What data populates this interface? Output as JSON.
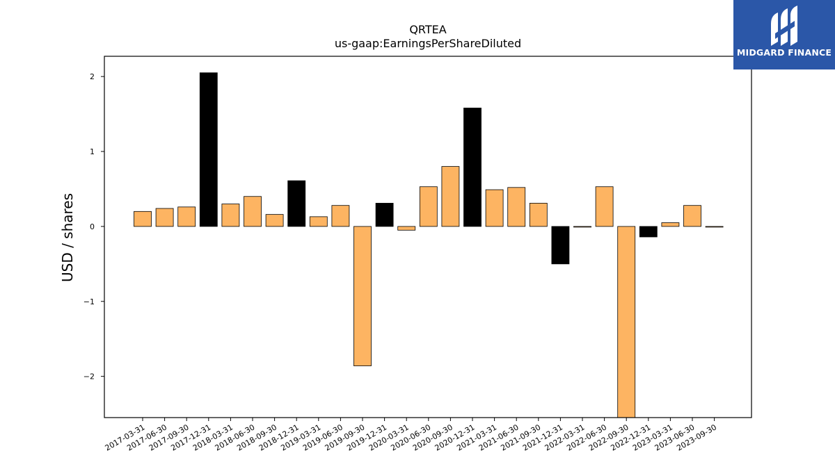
{
  "chart_data": {
    "type": "bar",
    "title": "QRTEA",
    "subtitle": "us-gaap:EarningsPerShareDiluted",
    "ylabel": "USD / shares",
    "xlabel": "",
    "ylim": [
      -2.55,
      2.27
    ],
    "yticks": [
      {
        "value": 2,
        "label": "2"
      },
      {
        "value": 1,
        "label": "1"
      },
      {
        "value": 0,
        "label": "0"
      },
      {
        "value": -1,
        "label": "−1"
      },
      {
        "value": -2,
        "label": "−2"
      }
    ],
    "categories": [
      "2017-03-31",
      "2017-06-30",
      "2017-09-30",
      "2017-12-31",
      "2018-03-31",
      "2018-06-30",
      "2018-09-30",
      "2018-12-31",
      "2019-03-31",
      "2019-06-30",
      "2019-09-30",
      "2019-12-31",
      "2020-03-31",
      "2020-06-30",
      "2020-09-30",
      "2020-12-31",
      "2021-03-31",
      "2021-06-30",
      "2021-09-30",
      "2021-12-31",
      "2022-03-31",
      "2022-06-30",
      "2022-09-30",
      "2022-12-31",
      "2023-03-31",
      "2023-06-30",
      "2023-09-30"
    ],
    "values": [
      0.2,
      0.24,
      0.26,
      2.05,
      0.3,
      0.4,
      0.16,
      0.61,
      0.13,
      0.28,
      -1.86,
      0.31,
      -0.05,
      0.53,
      0.8,
      1.58,
      0.49,
      0.52,
      0.31,
      -0.5,
      0.0,
      0.53,
      -2.55,
      -0.14,
      0.05,
      0.28,
      0.0
    ],
    "colors": [
      "#fdb462",
      "#fdb462",
      "#fdb462",
      "#000000",
      "#fdb462",
      "#fdb462",
      "#fdb462",
      "#000000",
      "#fdb462",
      "#fdb462",
      "#fdb462",
      "#000000",
      "#fdb462",
      "#fdb462",
      "#fdb462",
      "#000000",
      "#fdb462",
      "#fdb462",
      "#fdb462",
      "#000000",
      "#fdb462",
      "#fdb462",
      "#fdb462",
      "#000000",
      "#fdb462",
      "#fdb462",
      "#fdb462"
    ],
    "grid": false,
    "legend": "none"
  },
  "logo": {
    "text": "MIDGARD FINANCE",
    "background": "#2b57a8"
  }
}
